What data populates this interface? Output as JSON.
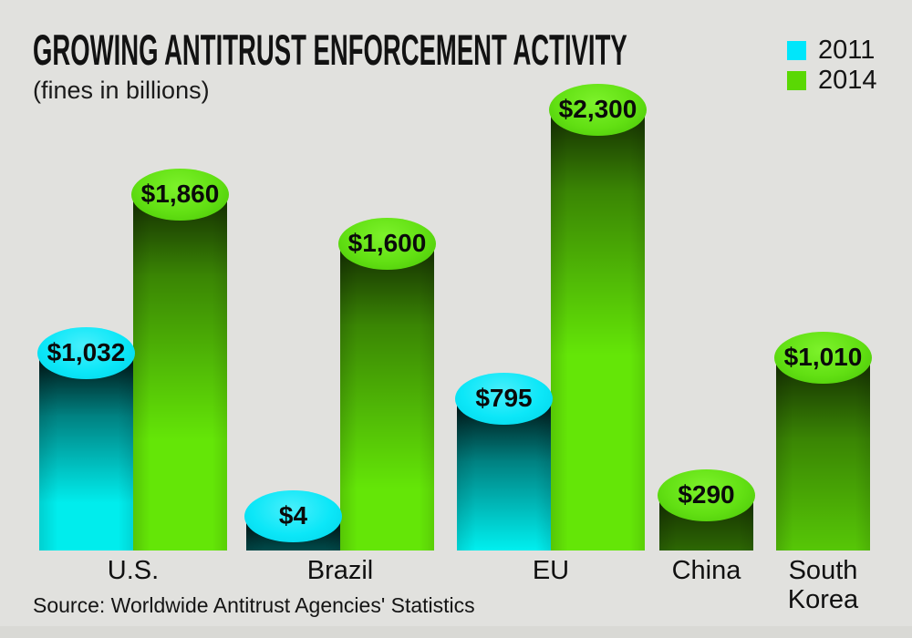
{
  "title": "GROWING ANTITRUST ENFORCEMENT ACTIVITY",
  "subtitle": "(fines in billions)",
  "source": "Source: Worldwide Antitrust Agencies' Statistics",
  "legend": {
    "position": "top-right",
    "items": [
      {
        "label": "2011",
        "color": "#00e6fb"
      },
      {
        "label": "2014",
        "color": "#5ad804"
      }
    ]
  },
  "colors": {
    "background": "#e1e1de",
    "series_2011": "#00e6fb",
    "series_2014": "#5ad804",
    "text": "#141414"
  },
  "chart_data": {
    "type": "bar",
    "title": "GROWING ANTITRUST ENFORCEMENT ACTIVITY",
    "subtitle": "(fines in billions)",
    "unit": "billions",
    "categories": [
      "U.S.",
      "Brazil",
      "EU",
      "China",
      "South Korea"
    ],
    "series": [
      {
        "name": "2011",
        "color": "#00e6fb",
        "values": [
          1032,
          4,
          795,
          null,
          null
        ],
        "data_labels": [
          "$1,032",
          "$4",
          "$795",
          null,
          null
        ]
      },
      {
        "name": "2014",
        "color": "#5ad804",
        "values": [
          1860,
          1600,
          2300,
          290,
          1010
        ],
        "data_labels": [
          "$1,860",
          "$1,600",
          "$2,300",
          "$290",
          "$1,010"
        ]
      }
    ],
    "ylim": [
      0,
      2400
    ],
    "grid": false,
    "axis_lines": false,
    "legend_position": "top-right",
    "source": "Source: Worldwide Antitrust Agencies' Statistics"
  }
}
